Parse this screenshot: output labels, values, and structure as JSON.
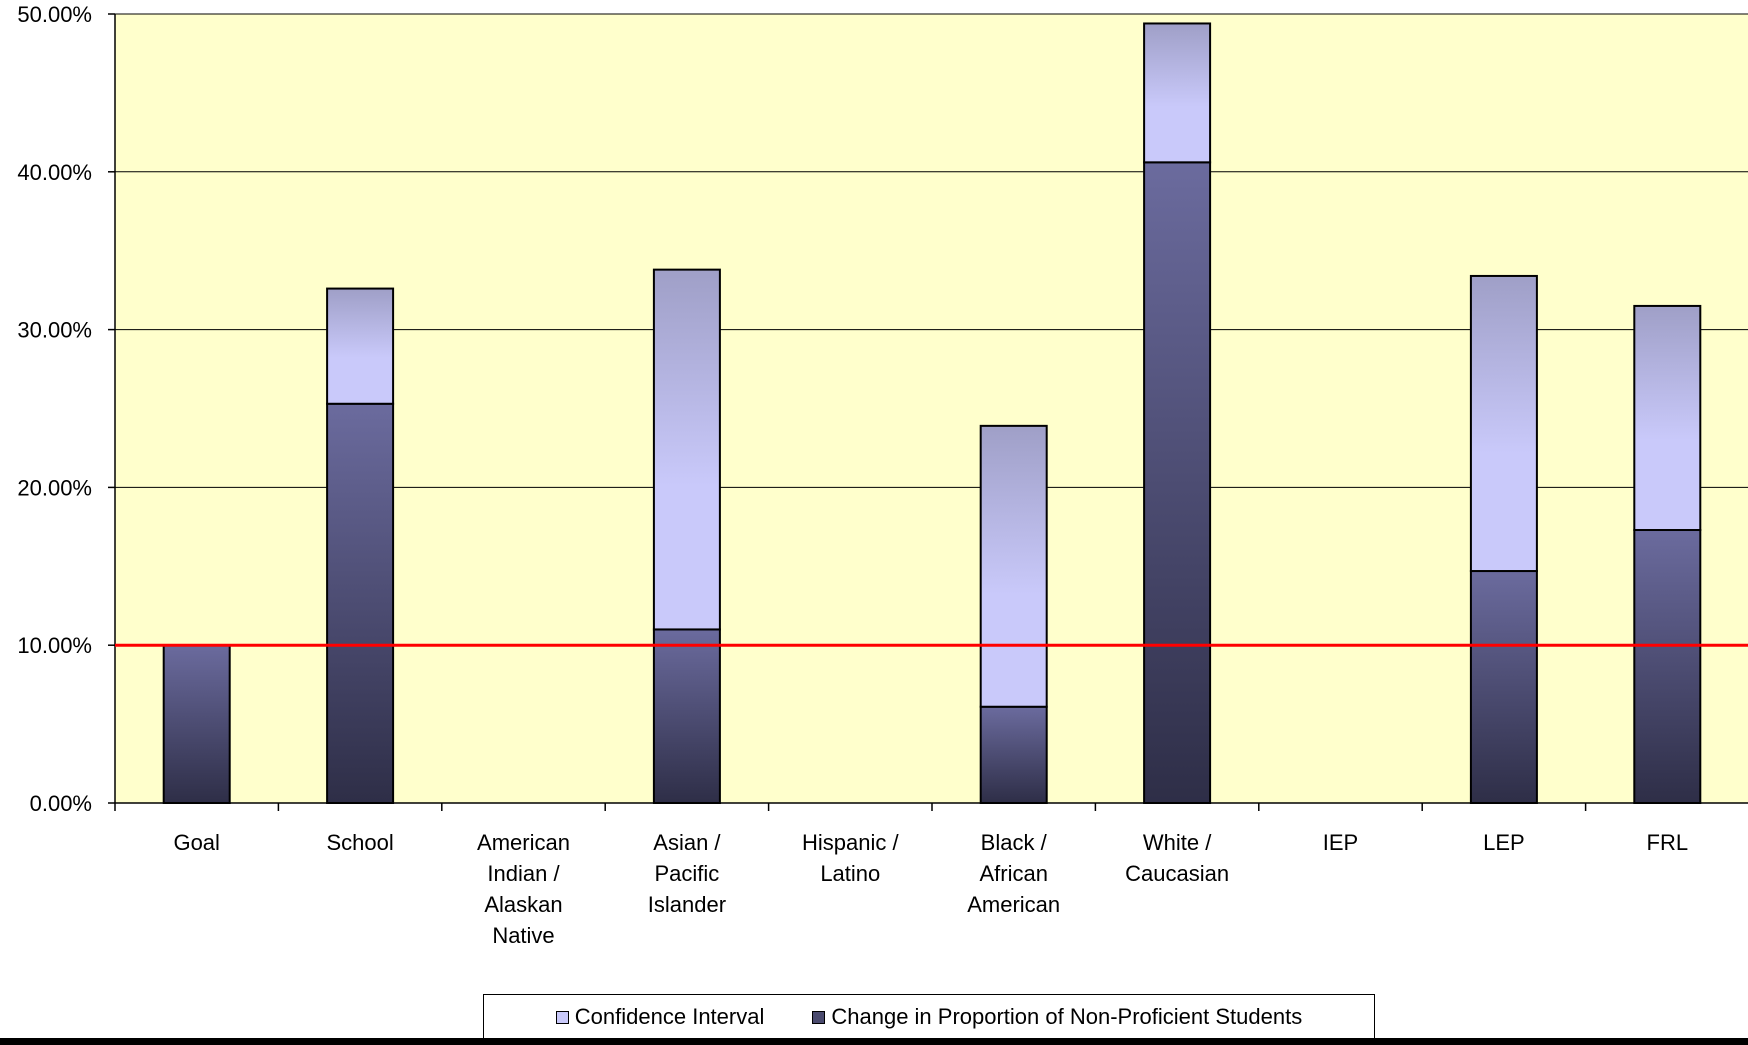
{
  "chart_data": {
    "type": "bar",
    "stacked": true,
    "categories": [
      [
        "Goal"
      ],
      [
        "School"
      ],
      [
        "American",
        "Indian /",
        "Alaskan",
        "Native"
      ],
      [
        "Asian /",
        "Pacific",
        "Islander"
      ],
      [
        "Hispanic /",
        "Latino"
      ],
      [
        "Black /",
        "African",
        "American"
      ],
      [
        "White /",
        "Caucasian"
      ],
      [
        "IEP"
      ],
      [
        "LEP"
      ],
      [
        "FRL"
      ]
    ],
    "series": [
      {
        "name": "Change in Proportion of Non-Proficient Students",
        "values": [
          10.0,
          25.3,
          null,
          11.0,
          null,
          6.1,
          40.6,
          null,
          14.7,
          17.3
        ],
        "color_top": "#6b6b9e",
        "color_bottom": "#2e2e47"
      },
      {
        "name": "Confidence Interval",
        "values": [
          0,
          7.3,
          null,
          22.8,
          null,
          17.8,
          8.8,
          null,
          18.7,
          14.2
        ],
        "color_top": "#9f9fc7",
        "color_mid": "#c9c9fa"
      }
    ],
    "yticks": [
      "0.00%",
      "10.00%",
      "20.00%",
      "30.00%",
      "40.00%",
      "50.00%"
    ],
    "ylim": [
      0,
      50
    ],
    "reference_line": {
      "value": 10,
      "color": "#ff0000"
    },
    "plot_background": "#ffffcc",
    "grid": true,
    "legend_position": "bottom",
    "legend_entries": [
      "Confidence Interval",
      "Change in Proportion of Non-Proficient Students"
    ],
    "legend_swatch_colors": [
      "#c9c9fa",
      "#4a4a6e"
    ]
  }
}
